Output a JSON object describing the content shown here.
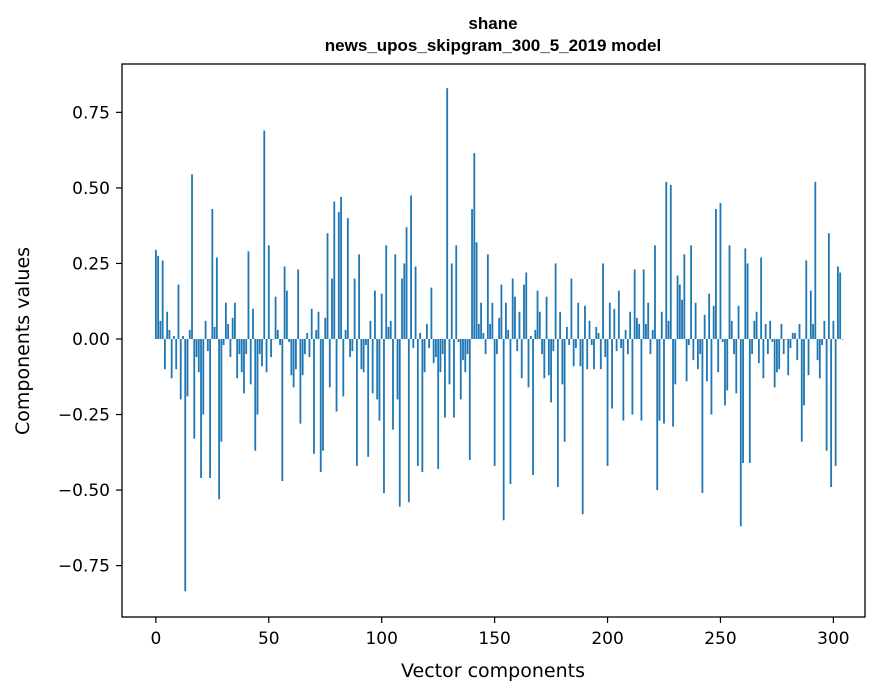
{
  "chart_data": {
    "type": "bar",
    "title": "shane",
    "subtitle": "news_upos_skipgram_300_5_2019 model",
    "xlabel": "Vector components",
    "ylabel": "Components values",
    "xlim": [
      -15,
      314
    ],
    "ylim": [
      -0.92,
      0.91
    ],
    "xticks": [
      0,
      50,
      100,
      150,
      200,
      250,
      300
    ],
    "yticks": [
      -0.75,
      -0.5,
      -0.25,
      0.0,
      0.25,
      0.5,
      0.75
    ],
    "ytick_labels": [
      "−0.75",
      "−0.50",
      "−0.25",
      "0.00",
      "0.25",
      "0.50",
      "0.75"
    ],
    "xtick_labels": [
      "0",
      "50",
      "100",
      "150",
      "200",
      "250",
      "300"
    ],
    "bar_color": "#1f77b4",
    "grid": false,
    "x": "0..299 (component index)",
    "values": [
      0.295,
      0.275,
      0.06,
      0.26,
      -0.1,
      0.09,
      0.03,
      -0.13,
      0.01,
      -0.1,
      0.18,
      -0.2,
      0.01,
      -0.835,
      -0.19,
      0.03,
      0.545,
      -0.33,
      -0.06,
      -0.11,
      -0.46,
      -0.25,
      0.06,
      -0.04,
      -0.46,
      0.43,
      0.04,
      0.27,
      -0.53,
      -0.34,
      -0.02,
      0.12,
      0.05,
      -0.06,
      0.07,
      0.12,
      -0.13,
      -0.05,
      -0.11,
      -0.18,
      -0.05,
      0.29,
      -0.15,
      0.1,
      -0.37,
      -0.25,
      -0.05,
      -0.09,
      0.69,
      -0.11,
      0.31,
      -0.06,
      0.0,
      0.14,
      0.03,
      -0.02,
      -0.47,
      0.24,
      0.16,
      -0.01,
      -0.12,
      -0.16,
      -0.1,
      0.23,
      -0.28,
      -0.12,
      -0.05,
      0.02,
      -0.06,
      0.1,
      -0.38,
      0.03,
      0.09,
      -0.44,
      -0.37,
      0.07,
      0.35,
      -0.16,
      0.2,
      0.455,
      -0.24,
      0.42,
      0.47,
      -0.19,
      0.03,
      0.4,
      -0.06,
      -0.04,
      0.2,
      -0.42,
      0.28,
      -0.1,
      -0.11,
      -0.02,
      -0.39,
      0.06,
      -0.18,
      0.16,
      -0.2,
      -0.27,
      0.15,
      -0.51,
      0.31,
      0.04,
      0.06,
      -0.3,
      0.28,
      -0.2,
      -0.555,
      0.2,
      0.25,
      0.37,
      -0.54,
      0.475,
      -0.03,
      0.24,
      -0.42,
      0.02,
      -0.44,
      -0.11,
      0.05,
      -0.03,
      0.17,
      -0.08,
      -0.06,
      -0.43,
      -0.11,
      -0.05,
      -0.26,
      0.83,
      -0.15,
      0.25,
      -0.26,
      0.31,
      -0.01,
      -0.2,
      -0.07,
      -0.11,
      -0.05,
      -0.4,
      0.43,
      0.615,
      0.32,
      0.05,
      0.12,
      0.02,
      -0.05,
      0.28,
      0.05,
      0.12,
      -0.42,
      -0.05,
      0.07,
      0.18,
      -0.6,
      0.12,
      0.03,
      -0.48,
      0.2,
      0.14,
      -0.04,
      0.09,
      -0.13,
      0.18,
      0.22,
      -0.16,
      0.01,
      -0.45,
      0.03,
      0.16,
      0.09,
      -0.05,
      -0.13,
      0.14,
      -0.12,
      -0.21,
      -0.04,
      0.25,
      -0.49,
      0.09,
      -0.15,
      -0.34,
      0.04,
      -0.02,
      0.2,
      -0.09,
      -0.03,
      0.12,
      -0.09,
      -0.58,
      0.11,
      -0.1,
      0.06,
      -0.02,
      -0.1,
      0.04,
      0.02,
      -0.1,
      0.25,
      -0.06,
      -0.42,
      0.12,
      -0.23,
      0.1,
      -0.04,
      0.16,
      -0.03,
      -0.27,
      0.03,
      -0.05,
      0.09,
      -0.25,
      0.23,
      0.07,
      0.05,
      -0.27,
      0.23,
      0.05,
      0.12,
      -0.05,
      0.03,
      0.31,
      -0.5,
      -0.27,
      0.09,
      -0.28,
      0.52,
      0.06,
      0.51,
      -0.29,
      -0.15,
      0.21,
      0.18,
      0.13,
      0.28,
      -0.14,
      -0.02,
      0.31,
      -0.07,
      0.12,
      -0.1,
      -0.05,
      -0.51,
      0.08,
      -0.14,
      0.15,
      -0.25,
      0.11,
      0.43,
      -0.11,
      0.45,
      -0.01,
      -0.22,
      -0.17,
      0.31,
      0.06,
      -0.05,
      -0.18,
      0.11,
      -0.62,
      -0.41,
      0.3,
      0.25,
      -0.41,
      -0.05,
      0.06,
      0.09,
      -0.08,
      0.27,
      -0.13,
      0.05,
      -0.05,
      0.06,
      -0.01,
      -0.16,
      -0.11,
      -0.1,
      0.05,
      -0.05,
      0.0,
      -0.12,
      -0.03,
      0.02,
      0.02,
      -0.07,
      0.05,
      -0.34,
      -0.22,
      0.26,
      -0.12,
      0.16,
      0.05,
      0.52,
      -0.07,
      -0.13,
      -0.02,
      0.06,
      -0.37,
      0.35,
      -0.49,
      0.06,
      -0.42,
      0.24,
      0.22,
      0.0
    ]
  }
}
